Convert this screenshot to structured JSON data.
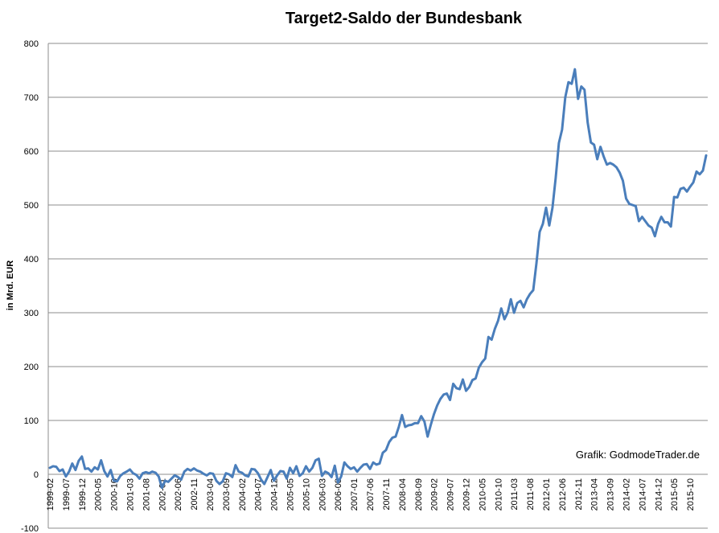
{
  "chart_data": {
    "type": "line",
    "title": "Target2-Saldo der Bundesbank",
    "ylabel": "in Mrd. EUR",
    "xlabel": "",
    "ylim": [
      -100,
      800
    ],
    "yticks": [
      -100,
      0,
      100,
      200,
      300,
      400,
      500,
      600,
      700,
      800
    ],
    "grid": "horizontal",
    "line_color": "#4a7ebb",
    "annotation": "Grafik: GodmodeTrader.de",
    "x_ticks": [
      "1999-02",
      "1999-07",
      "1999-12",
      "2000-05",
      "2000-10",
      "2001-03",
      "2001-08",
      "2002-01",
      "2002-06",
      "2002-11",
      "2003-04",
      "2003-09",
      "2004-02",
      "2004-07",
      "2004-12",
      "2005-05",
      "2005-10",
      "2006-03",
      "2006-08",
      "2007-01",
      "2007-06",
      "2007-11",
      "2008-04",
      "2008-09",
      "2009-02",
      "2009-07",
      "2009-12",
      "2010-05",
      "2010-10",
      "2011-03",
      "2011-08",
      "2012-01",
      "2012-06",
      "2012-11",
      "2013-04",
      "2013-09",
      "2014-02",
      "2014-07",
      "2014-12",
      "2015-05",
      "2015-10"
    ],
    "x_start": "1999-02",
    "series": [
      {
        "values": [
          12,
          15,
          14,
          6,
          9,
          -4,
          5,
          20,
          8,
          25,
          33,
          10,
          11,
          5,
          13,
          9,
          26,
          6,
          -4,
          8,
          -12,
          -13,
          -3,
          2,
          5,
          9,
          2,
          -1,
          -8,
          2,
          4,
          2,
          5,
          3,
          -4,
          -25,
          -12,
          -14,
          -8,
          -2,
          -5,
          -10,
          5,
          10,
          7,
          11,
          7,
          5,
          1,
          -2,
          2,
          1,
          -12,
          -18,
          -13,
          2,
          0,
          -5,
          17,
          5,
          3,
          -2,
          -4,
          10,
          9,
          2,
          -10,
          -18,
          -5,
          8,
          -12,
          -2,
          6,
          5,
          -8,
          12,
          2,
          15,
          -3,
          2,
          15,
          5,
          12,
          26,
          29,
          -3,
          5,
          2,
          -5,
          16,
          -15,
          -4,
          22,
          15,
          10,
          13,
          5,
          12,
          18,
          19,
          10,
          22,
          18,
          20,
          40,
          45,
          60,
          68,
          70,
          88,
          110,
          88,
          91,
          92,
          95,
          95,
          108,
          98,
          70,
          92,
          112,
          128,
          140,
          148,
          150,
          138,
          168,
          160,
          158,
          176,
          155,
          162,
          175,
          178,
          198,
          208,
          215,
          255,
          250,
          270,
          285,
          308,
          288,
          300,
          325,
          300,
          318,
          322,
          310,
          325,
          335,
          342,
          392,
          450,
          465,
          495,
          462,
          495,
          550,
          615,
          640,
          700,
          728,
          725,
          752,
          697,
          720,
          714,
          653,
          616,
          612,
          585,
          608,
          590,
          575,
          578,
          575,
          570,
          560,
          545,
          512,
          502,
          500,
          498,
          470,
          478,
          470,
          462,
          458,
          442,
          465,
          478,
          468,
          468,
          460,
          515,
          514,
          530,
          532,
          525,
          534,
          542,
          562,
          557,
          564,
          592
        ]
      }
    ]
  }
}
